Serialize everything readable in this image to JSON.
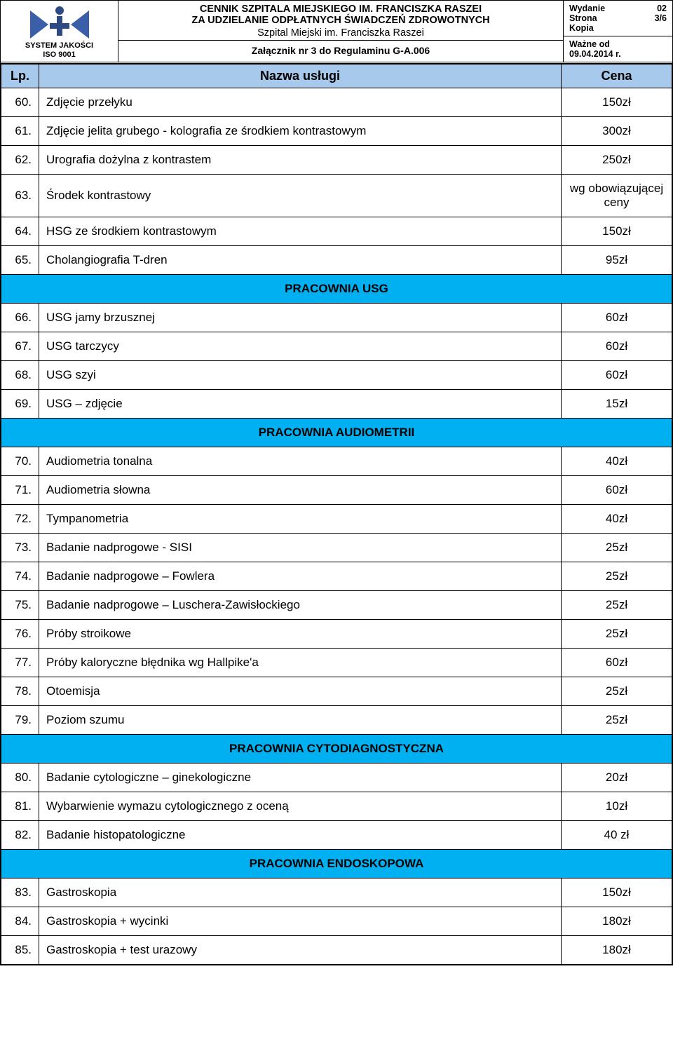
{
  "colors": {
    "header_bg": "#a6c9ec",
    "section_bg": "#00b0f0",
    "border": "#000000",
    "text": "#000000",
    "logo_blue": "#3a5ea8",
    "logo_blue_dark": "#2d4a85",
    "page_bg": "#ffffff"
  },
  "header": {
    "logo_line1": "SYSTEM JAKOŚCI",
    "logo_line2": "ISO 9001",
    "title_line1": "CENNIK SZPITALA MIEJSKIEGO IM. FRANCISZKA RASZEI",
    "title_line2": "ZA UDZIELANIE ODPŁATNYCH ŚWIADCZEŃ ZDROWOTNYCH",
    "title_line3": "Szpital Miejski im. Franciszka Raszei",
    "attachment": "Załącznik nr 3 do Regulaminu G-A.006",
    "meta": {
      "wydanie_label": "Wydanie",
      "wydanie_value": "02",
      "strona_label": "Strona",
      "strona_value": "3/6",
      "kopia_label": "Kopia",
      "wazne_label": "Ważne od",
      "wazne_value": "09.04.2014 r."
    }
  },
  "columns": {
    "lp": "Lp.",
    "name": "Nazwa usługi",
    "price": "Cena"
  },
  "rows": [
    {
      "type": "item",
      "lp": "60.",
      "name": "Zdjęcie przełyku",
      "price": "150zł"
    },
    {
      "type": "item",
      "lp": "61.",
      "name": "Zdjęcie jelita grubego - kolografia ze środkiem kontrastowym",
      "price": "300zł"
    },
    {
      "type": "item",
      "lp": "62.",
      "name": "Urografia dożylna z kontrastem",
      "price": "250zł"
    },
    {
      "type": "item",
      "lp": "63.",
      "name": "Środek kontrastowy",
      "price": "wg obowiązującej ceny"
    },
    {
      "type": "item",
      "lp": "64.",
      "name": "HSG ze środkiem kontrastowym",
      "price": "150zł"
    },
    {
      "type": "item",
      "lp": "65.",
      "name": "Cholangiografia T-dren",
      "price": "95zł"
    },
    {
      "type": "section",
      "title": "PRACOWNIA USG"
    },
    {
      "type": "item",
      "lp": "66.",
      "name": "USG jamy brzusznej",
      "price": "60zł"
    },
    {
      "type": "item",
      "lp": "67.",
      "name": "USG tarczycy",
      "price": "60zł"
    },
    {
      "type": "item",
      "lp": "68.",
      "name": "USG szyi",
      "price": "60zł"
    },
    {
      "type": "item",
      "lp": "69.",
      "name": "USG – zdjęcie",
      "price": "15zł"
    },
    {
      "type": "section",
      "title": "PRACOWNIA AUDIOMETRII"
    },
    {
      "type": "item",
      "lp": "70.",
      "name": "Audiometria tonalna",
      "price": "40zł"
    },
    {
      "type": "item",
      "lp": "71.",
      "name": "Audiometria słowna",
      "price": "60zł"
    },
    {
      "type": "item",
      "lp": "72.",
      "name": "Tympanometria",
      "price": "40zł"
    },
    {
      "type": "item",
      "lp": "73.",
      "name": "Badanie nadprogowe - SISI",
      "price": "25zł"
    },
    {
      "type": "item",
      "lp": "74.",
      "name": "Badanie nadprogowe – Fowlera",
      "price": "25zł"
    },
    {
      "type": "item",
      "lp": "75.",
      "name": "Badanie nadprogowe – Luschera-Zawisłockiego",
      "price": "25zł"
    },
    {
      "type": "item",
      "lp": "76.",
      "name": "Próby stroikowe",
      "price": "25zł"
    },
    {
      "type": "item",
      "lp": "77.",
      "name": "Próby kaloryczne błędnika wg Hallpike'a",
      "price": "60zł"
    },
    {
      "type": "item",
      "lp": "78.",
      "name": "Otoemisja",
      "price": "25zł"
    },
    {
      "type": "item",
      "lp": "79.",
      "name": "Poziom szumu",
      "price": "25zł"
    },
    {
      "type": "section",
      "title": "PRACOWNIA CYTODIAGNOSTYCZNA"
    },
    {
      "type": "item",
      "lp": "80.",
      "name": "Badanie cytologiczne – ginekologiczne",
      "price": "20zł"
    },
    {
      "type": "item",
      "lp": "81.",
      "name": "Wybarwienie wymazu cytologicznego z oceną",
      "price": "10zł"
    },
    {
      "type": "item",
      "lp": "82.",
      "name": "Badanie histopatologiczne",
      "price": "40 zł"
    },
    {
      "type": "section",
      "title": "PRACOWNIA ENDOSKOPOWA"
    },
    {
      "type": "item",
      "lp": "83.",
      "name": "Gastroskopia",
      "price": "150zł"
    },
    {
      "type": "item",
      "lp": "84.",
      "name": "Gastroskopia + wycinki",
      "price": "180zł"
    },
    {
      "type": "item",
      "lp": "85.",
      "name": "Gastroskopia + test urazowy",
      "price": "180zł"
    }
  ]
}
